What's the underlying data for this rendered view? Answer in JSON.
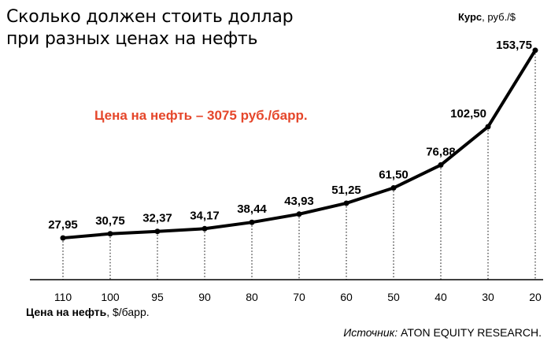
{
  "chart_data": {
    "type": "line",
    "title_lines": [
      "Сколько должен стоить доллар",
      "при  разных ценах на нефть"
    ],
    "y_unit_bold": "Курс",
    "y_unit_rest": ", руб./$",
    "x_unit_bold": "Цена на нефть",
    "x_unit_rest": ", $/барр.",
    "annotation": "Цена на нефть – 3075 руб./барр.",
    "source_italic": "Источник:",
    "source_rest": " ATON EQUITY RESEARCH.",
    "categories": [
      "110",
      "100",
      "95",
      "90",
      "80",
      "70",
      "60",
      "50",
      "40",
      "30",
      "20"
    ],
    "values": [
      27.95,
      30.75,
      32.37,
      34.17,
      38.44,
      43.93,
      51.25,
      61.5,
      76.88,
      102.5,
      153.75
    ],
    "value_labels": [
      "27,95",
      "30,75",
      "32,37",
      "34,17",
      "38,44",
      "43,93",
      "51,25",
      "61,50",
      "76,88",
      "102,50",
      "153,75"
    ],
    "ylim": [
      0,
      160
    ],
    "grid": "vertical dotted drop lines",
    "colors": {
      "line": "#000000",
      "annotation": "#e5462a"
    }
  }
}
